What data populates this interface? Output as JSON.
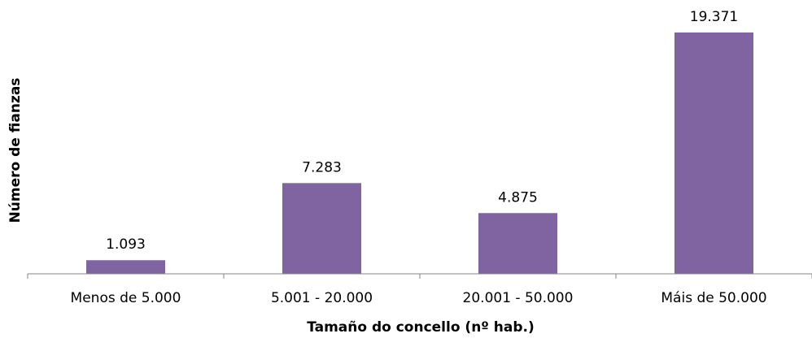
{
  "chart_data": {
    "type": "bar",
    "categories": [
      "Menos de 5.000",
      "5.001 - 20.000",
      "20.001 - 50.000",
      "Máis de 50.000"
    ],
    "values": [
      1093,
      7283,
      4875,
      19371
    ],
    "value_labels": [
      "1.093",
      "7.283",
      "4.875",
      "19.371"
    ],
    "title": "",
    "xlabel": "Tamaño do concello (nº hab.)",
    "ylabel": "Número de fianzas",
    "ylim": [
      0,
      19371
    ],
    "grid": false,
    "legend": "none",
    "bar_color": "#8064a2",
    "axis_color": "#868686"
  }
}
